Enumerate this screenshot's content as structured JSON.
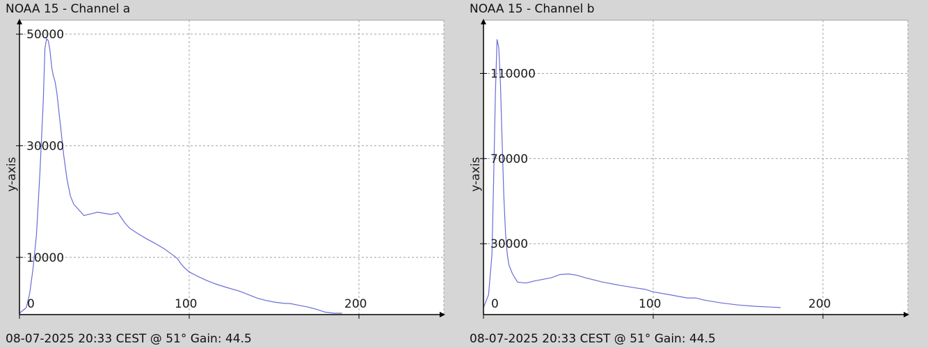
{
  "colors": {
    "background": "#d6d6d6",
    "plot_bg": "#ffffff",
    "grid": "#a0a0a0",
    "series": "#6a6ad8",
    "axis": "#000000"
  },
  "panels": [
    {
      "title": "NOAA 15 - Channel a",
      "status": "08-07-2025 20:33 CEST @ 51° Gain: 44.5"
    },
    {
      "title": "NOAA 15 - Channel b",
      "status": "08-07-2025 20:33 CEST @ 51° Gain: 44.5"
    }
  ],
  "chart_data": [
    {
      "type": "line",
      "title": "NOAA 15 - Channel a",
      "xlabel": "",
      "ylabel": "y-axis",
      "xlim": [
        0,
        250
      ],
      "ylim": [
        -250,
        52500
      ],
      "xticks": [
        0,
        100,
        200
      ],
      "yticks": [
        10000,
        30000,
        50000
      ],
      "grid": true,
      "x": [
        0,
        4,
        6,
        8,
        10,
        12,
        14,
        15,
        16,
        17,
        18,
        19,
        20,
        21,
        22,
        24,
        26,
        28,
        30,
        32,
        35,
        38,
        42,
        46,
        50,
        54,
        58,
        60,
        62,
        65,
        70,
        75,
        80,
        85,
        90,
        93,
        95,
        97,
        100,
        105,
        110,
        115,
        120,
        130,
        140,
        145,
        150,
        155,
        160,
        165,
        170,
        175,
        180,
        185,
        190
      ],
      "series": [
        {
          "name": "",
          "values": [
            0,
            1000,
            3500,
            8000,
            14000,
            25000,
            38000,
            47500,
            49200,
            48800,
            47000,
            44000,
            42500,
            41500,
            39500,
            34000,
            28500,
            24000,
            21000,
            19500,
            18500,
            17500,
            17800,
            18100,
            17900,
            17700,
            18000,
            17100,
            16200,
            15200,
            14200,
            13300,
            12500,
            11600,
            10500,
            9800,
            8900,
            8200,
            7400,
            6600,
            5900,
            5300,
            4800,
            3900,
            2700,
            2300,
            2000,
            1800,
            1700,
            1400,
            1100,
            700,
            200,
            0,
            0
          ]
        }
      ]
    },
    {
      "type": "line",
      "title": "NOAA 15 - Channel b",
      "xlabel": "",
      "ylabel": "y-axis",
      "xlim": [
        0,
        250
      ],
      "ylim": [
        -3300,
        135000
      ],
      "xticks": [
        0,
        100,
        200
      ],
      "yticks": [
        30000,
        70000,
        110000
      ],
      "grid": true,
      "x": [
        0,
        3,
        5,
        6,
        7,
        8,
        9,
        10,
        11,
        12,
        13,
        14,
        15,
        17,
        20,
        25,
        30,
        40,
        45,
        50,
        55,
        60,
        70,
        80,
        90,
        95,
        100,
        110,
        120,
        125,
        130,
        140,
        150,
        160,
        170,
        175
      ],
      "series": [
        {
          "name": "",
          "values": [
            0,
            6000,
            25000,
            60000,
            100000,
            126000,
            122000,
            105000,
            78000,
            52000,
            35000,
            25000,
            20000,
            16000,
            12000,
            11500,
            12500,
            14000,
            15500,
            15800,
            15200,
            14000,
            12000,
            10500,
            9200,
            8600,
            7400,
            6000,
            4500,
            4500,
            3500,
            2200,
            1200,
            600,
            200,
            0
          ]
        }
      ]
    }
  ]
}
